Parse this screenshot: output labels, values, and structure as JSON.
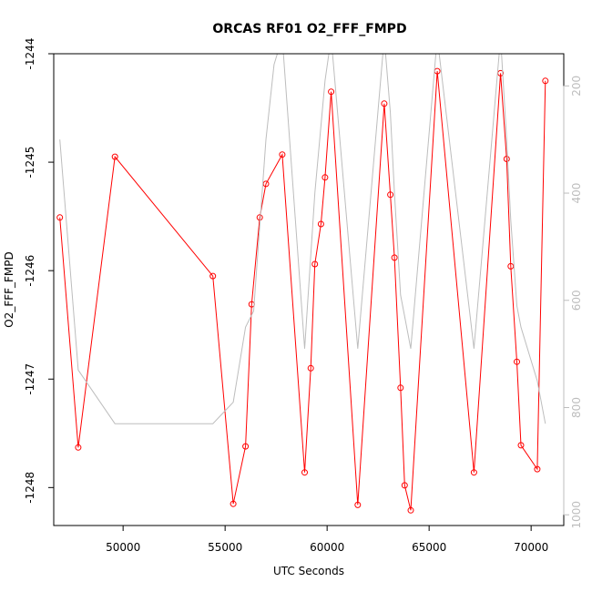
{
  "chart_data": {
    "type": "line",
    "title": "ORCAS RF01 O2_FFF_FMPD",
    "xlabel": "UTC Seconds",
    "ylabel": "O2_FFF_FMPD",
    "xlim": [
      46600,
      71600
    ],
    "ylim": [
      -1248.35,
      -1244
    ],
    "x_ticks": [
      50000,
      55000,
      60000,
      65000,
      70000
    ],
    "y_ticks": [
      -1248,
      -1247,
      -1246,
      -1245,
      -1244
    ],
    "y2_ticks": [
      200,
      400,
      600,
      800,
      1000
    ],
    "y2_range_top_to_bottom": [
      140,
      1020
    ],
    "series": [
      {
        "color": "#ff0000",
        "axis": "left",
        "marker": "open-circle",
        "x": [
          46900,
          47800,
          49600,
          54400,
          55400,
          56000,
          56300,
          56700,
          57000,
          57800,
          58900,
          59200,
          59400,
          59700,
          59900,
          60200,
          61500,
          62800,
          63100,
          63300,
          63600,
          63800,
          64100,
          65400,
          67200,
          68500,
          68800,
          69000,
          69300,
          69500,
          70300,
          70700
        ],
        "y": [
          -1245.51,
          -1247.63,
          -1244.95,
          -1246.05,
          -1248.15,
          -1247.62,
          -1246.31,
          -1245.51,
          -1245.2,
          -1244.93,
          -1247.86,
          -1246.9,
          -1245.94,
          -1245.57,
          -1245.14,
          -1244.35,
          -1248.16,
          -1244.46,
          -1245.3,
          -1245.88,
          -1247.08,
          -1247.98,
          -1248.21,
          -1244.16,
          -1247.86,
          -1244.18,
          -1244.97,
          -1245.96,
          -1246.84,
          -1247.61,
          -1247.83,
          -1244.25
        ]
      },
      {
        "color": "#bdbdbd",
        "axis": "right",
        "marker": "none",
        "x": [
          46900,
          47800,
          49600,
          54400,
          55400,
          56000,
          56400,
          57000,
          57400,
          57800,
          58900,
          59400,
          59900,
          60200,
          61500,
          62800,
          63100,
          63300,
          63600,
          63800,
          64100,
          65400,
          67200,
          68500,
          68800,
          69000,
          69300,
          69500,
          70300,
          70700
        ],
        "y": [
          300,
          730,
          830,
          830,
          790,
          650,
          620,
          300,
          160,
          110,
          690,
          400,
          190,
          110,
          690,
          110,
          250,
          400,
          590,
          630,
          690,
          110,
          690,
          110,
          300,
          450,
          610,
          650,
          750,
          830
        ]
      }
    ]
  }
}
